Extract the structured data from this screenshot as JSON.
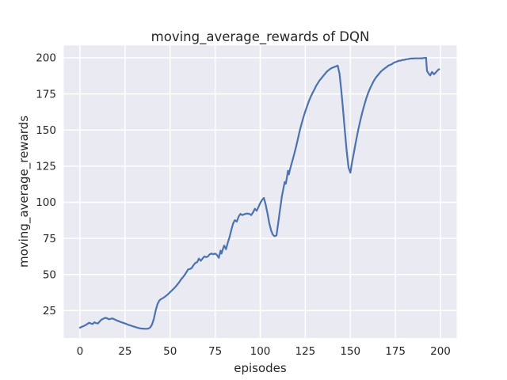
{
  "figure": {
    "background": "#ffffff"
  },
  "chart_data": {
    "type": "line",
    "title": "moving_average_rewards of DQN",
    "xlabel": "episodes",
    "ylabel": "moving_average_rewards",
    "x_ticks": [
      0,
      25,
      50,
      75,
      100,
      125,
      150,
      175,
      200
    ],
    "y_ticks": [
      25,
      50,
      75,
      100,
      125,
      150,
      175,
      200
    ],
    "xlim": [
      -9,
      209
    ],
    "ylim": [
      6,
      208.5
    ],
    "grid": true,
    "legend": "none",
    "style": {
      "line_color": "#4C72B0",
      "axes_bg": "#EAEAF2",
      "grid_color": "#FFFFFF",
      "text_color": "#262626",
      "figure_bg": "#FFFFFF"
    },
    "series": [
      {
        "name": "moving_average_rewards",
        "points": [
          [
            0,
            13.2
          ],
          [
            1,
            13.8
          ],
          [
            2,
            14.3
          ],
          [
            3,
            14.9
          ],
          [
            4,
            15.7
          ],
          [
            5,
            16.6
          ],
          [
            6,
            16.1
          ],
          [
            7,
            15.7
          ],
          [
            8,
            16.9
          ],
          [
            9,
            16.3
          ],
          [
            10,
            16.1
          ],
          [
            11,
            17.6
          ],
          [
            12,
            18.8
          ],
          [
            13,
            19.4
          ],
          [
            14,
            20.0
          ],
          [
            15,
            19.7
          ],
          [
            16,
            19.0
          ],
          [
            17,
            19.3
          ],
          [
            18,
            19.6
          ],
          [
            19,
            19.0
          ],
          [
            20,
            18.4
          ],
          [
            21,
            17.9
          ],
          [
            22,
            17.4
          ],
          [
            23,
            16.9
          ],
          [
            24,
            16.5
          ],
          [
            25,
            16.1
          ],
          [
            26,
            15.6
          ],
          [
            27,
            15.1
          ],
          [
            28,
            14.7
          ],
          [
            29,
            14.3
          ],
          [
            30,
            13.9
          ],
          [
            31,
            13.5
          ],
          [
            32,
            13.1
          ],
          [
            33,
            12.8
          ],
          [
            34,
            12.6
          ],
          [
            35,
            12.5
          ],
          [
            36,
            12.4
          ],
          [
            37,
            12.4
          ],
          [
            38,
            12.6
          ],
          [
            39,
            13.4
          ],
          [
            40,
            15.5
          ],
          [
            41,
            19.5
          ],
          [
            42,
            25.0
          ],
          [
            43,
            29.5
          ],
          [
            44,
            32.0
          ],
          [
            45,
            33.0
          ],
          [
            46,
            33.6
          ],
          [
            47,
            34.5
          ],
          [
            48,
            35.5
          ],
          [
            49,
            36.5
          ],
          [
            50,
            37.8
          ],
          [
            51,
            39.0
          ],
          [
            52,
            40.2
          ],
          [
            53,
            41.5
          ],
          [
            54,
            43.0
          ],
          [
            55,
            44.5
          ],
          [
            56,
            46.5
          ],
          [
            57,
            48.0
          ],
          [
            58,
            49.5
          ],
          [
            59,
            51.5
          ],
          [
            60,
            53.5
          ],
          [
            61,
            53.8
          ],
          [
            62,
            54.5
          ],
          [
            63,
            56.5
          ],
          [
            64,
            58.0
          ],
          [
            65,
            58.5
          ],
          [
            66,
            61.0
          ],
          [
            67,
            59.5
          ],
          [
            68,
            61.0
          ],
          [
            69,
            62.5
          ],
          [
            70,
            62.0
          ],
          [
            71,
            62.5
          ],
          [
            72,
            64.0
          ],
          [
            73,
            64.5
          ],
          [
            74,
            64.0
          ],
          [
            75,
            64.5
          ],
          [
            76,
            63.5
          ],
          [
            77,
            61.5
          ],
          [
            78,
            66.5
          ],
          [
            78.5,
            64.5
          ],
          [
            79.5,
            68.5
          ],
          [
            80,
            70.0
          ],
          [
            81,
            67.5
          ],
          [
            82,
            72.0
          ],
          [
            83,
            76.0
          ],
          [
            84,
            81.0
          ],
          [
            85,
            85.5
          ],
          [
            86,
            87.6
          ],
          [
            87,
            86.6
          ],
          [
            88,
            90.0
          ],
          [
            89,
            92.0
          ],
          [
            90,
            91.1
          ],
          [
            91,
            91.6
          ],
          [
            92,
            92.1
          ],
          [
            93,
            92.1
          ],
          [
            94,
            92.0
          ],
          [
            95,
            91.1
          ],
          [
            96,
            93.0
          ],
          [
            97,
            95.5
          ],
          [
            98,
            94.1
          ],
          [
            99,
            96.6
          ],
          [
            100,
            99.5
          ],
          [
            101,
            101.6
          ],
          [
            102,
            103.0
          ],
          [
            103,
            98.5
          ],
          [
            104,
            92.5
          ],
          [
            105,
            85.5
          ],
          [
            106,
            80.5
          ],
          [
            107,
            77.6
          ],
          [
            108,
            76.5
          ],
          [
            109,
            77.0
          ],
          [
            110,
            86.0
          ],
          [
            111,
            95.0
          ],
          [
            112,
            104.0
          ],
          [
            113,
            110.5
          ],
          [
            113.6,
            114.0
          ],
          [
            114.2,
            112.8
          ],
          [
            115,
            118.5
          ],
          [
            115.4,
            121.8
          ],
          [
            115.9,
            119.3
          ],
          [
            116.5,
            122.5
          ],
          [
            117,
            125.0
          ],
          [
            118,
            129.5
          ],
          [
            119,
            134.0
          ],
          [
            120,
            139.0
          ],
          [
            121,
            144.5
          ],
          [
            122,
            150.0
          ],
          [
            123,
            154.5
          ],
          [
            124,
            159.0
          ],
          [
            125,
            163.0
          ],
          [
            126,
            166.5
          ],
          [
            127,
            170.0
          ],
          [
            128,
            173.0
          ],
          [
            129,
            175.6
          ],
          [
            130,
            178.0
          ],
          [
            131,
            180.5
          ],
          [
            132,
            182.5
          ],
          [
            133,
            184.5
          ],
          [
            134,
            186.0
          ],
          [
            135,
            187.5
          ],
          [
            136,
            189.0
          ],
          [
            137,
            190.5
          ],
          [
            138,
            191.5
          ],
          [
            139,
            192.5
          ],
          [
            140,
            193.1
          ],
          [
            141,
            193.6
          ],
          [
            142,
            194.1
          ],
          [
            143,
            194.6
          ],
          [
            144,
            189.0
          ],
          [
            145,
            177.0
          ],
          [
            146,
            163.0
          ],
          [
            147,
            149.0
          ],
          [
            148,
            135.0
          ],
          [
            149,
            124.0
          ],
          [
            150,
            120.5
          ],
          [
            151,
            128.0
          ],
          [
            152,
            134.5
          ],
          [
            153,
            141.5
          ],
          [
            154,
            148.0
          ],
          [
            155,
            153.6
          ],
          [
            156,
            159.0
          ],
          [
            157,
            164.0
          ],
          [
            158,
            168.5
          ],
          [
            159,
            172.5
          ],
          [
            160,
            176.0
          ],
          [
            161,
            179.0
          ],
          [
            162,
            181.6
          ],
          [
            163,
            184.0
          ],
          [
            164,
            186.0
          ],
          [
            165,
            187.6
          ],
          [
            166,
            189.1
          ],
          [
            167,
            190.5
          ],
          [
            168,
            191.6
          ],
          [
            169,
            192.6
          ],
          [
            170,
            193.5
          ],
          [
            171,
            194.5
          ],
          [
            172,
            195.1
          ],
          [
            173,
            195.6
          ],
          [
            174,
            196.5
          ],
          [
            175,
            197.0
          ],
          [
            176,
            197.5
          ],
          [
            177,
            198.0
          ],
          [
            178,
            198.1
          ],
          [
            179,
            198.5
          ],
          [
            180,
            198.6
          ],
          [
            181,
            199.0
          ],
          [
            182,
            199.1
          ],
          [
            183,
            199.4
          ],
          [
            184,
            199.5
          ],
          [
            185,
            199.5
          ],
          [
            186,
            199.6
          ],
          [
            187,
            199.6
          ],
          [
            188,
            199.6
          ],
          [
            189,
            199.7
          ],
          [
            190,
            199.7
          ],
          [
            191,
            199.9
          ],
          [
            192,
            200.0
          ],
          [
            192.5,
            190.9
          ],
          [
            193.5,
            189.0
          ],
          [
            194.3,
            187.8
          ],
          [
            195.3,
            190.2
          ],
          [
            196.4,
            188.6
          ],
          [
            197.5,
            190.0
          ],
          [
            198.5,
            191.4
          ],
          [
            199.3,
            192.1
          ]
        ]
      }
    ]
  }
}
